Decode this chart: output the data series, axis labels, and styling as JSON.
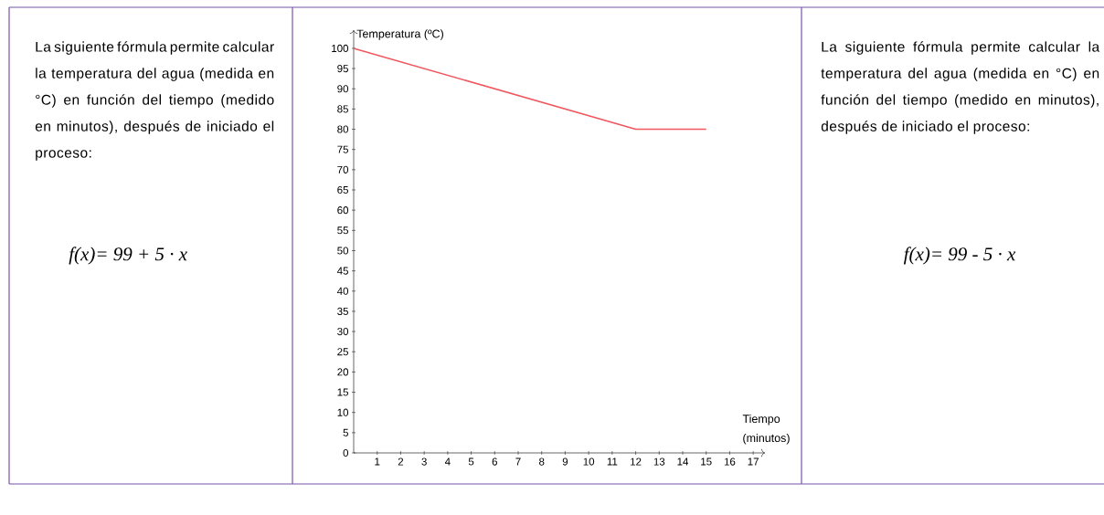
{
  "chart_data": [
    {
      "type": "other",
      "annotations": [
        "La siguiente fórmula permite calcular la temperatura del agua (medida en °C) en función del tiempo (medido en minutos), después de iniciado el proceso:",
        "f(x)= 99 + 5 · x"
      ]
    },
    {
      "type": "line",
      "xlabel": "Tiempo (minutos)",
      "ylabel": "Temperatura (ºC)",
      "x": [
        0,
        12,
        15
      ],
      "values": [
        100,
        80,
        80
      ],
      "color": "#f0585f",
      "xlim": [
        0,
        17.5
      ],
      "ylim": [
        0,
        104.5
      ],
      "xticks": [
        1,
        2,
        3,
        4,
        5,
        6,
        7,
        8,
        9,
        10,
        11,
        12,
        13,
        14,
        15,
        16,
        17
      ],
      "yticks": [
        0,
        5,
        10,
        15,
        20,
        25,
        30,
        35,
        40,
        45,
        50,
        55,
        60,
        65,
        70,
        75,
        80,
        85,
        90,
        95,
        100
      ],
      "grid": false,
      "marker": "none",
      "line_style": "solid"
    },
    {
      "type": "other",
      "annotations": [
        "La siguiente fórmula permite calcular la temperatura del agua (medida en °C) en función del tiempo (medido en minutos), después de iniciado el proceso:",
        "f(x)= 99 - 5 · x"
      ]
    }
  ]
}
